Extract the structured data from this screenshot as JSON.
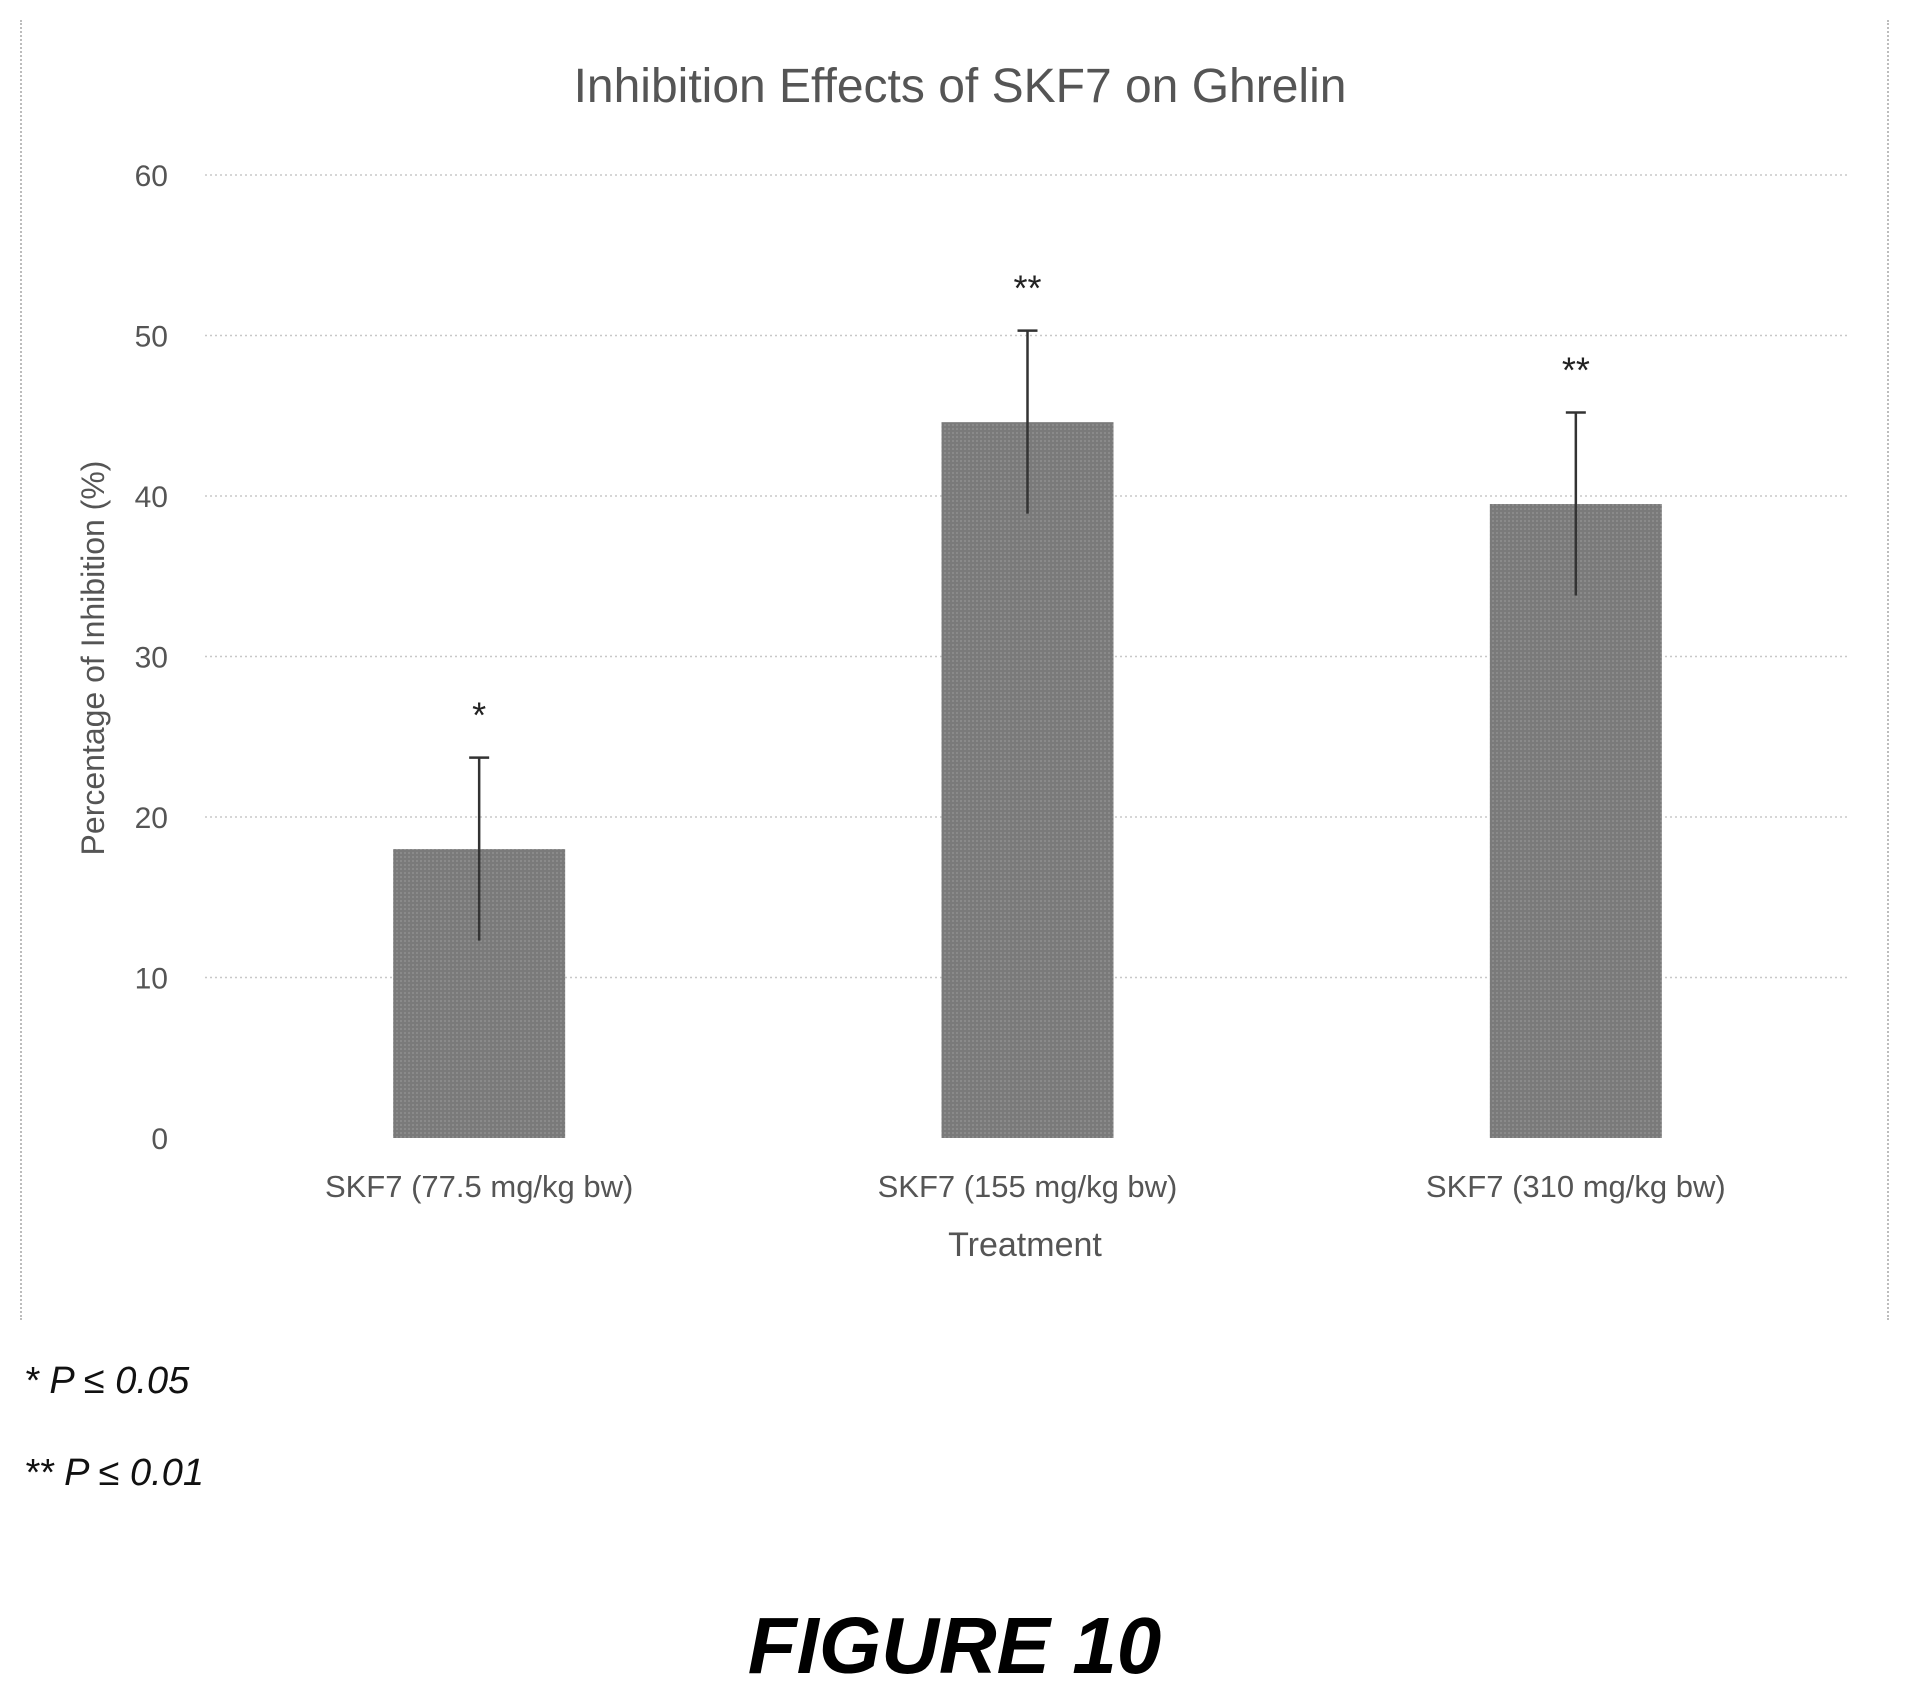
{
  "chart_data": {
    "type": "bar",
    "title": "Inhibition Effects of SKF7 on Ghrelin",
    "xlabel": "Treatment",
    "ylabel": "Percentage of Inhibition (%)",
    "categories": [
      "SKF7 (77.5 mg/kg bw)",
      "SKF7 (155 mg/kg bw)",
      "SKF7 (310 mg/kg bw)"
    ],
    "values": [
      18.0,
      44.6,
      39.5
    ],
    "error": [
      5.7,
      5.7,
      5.7
    ],
    "significance": [
      "*",
      "**",
      "**"
    ],
    "ylim": [
      0,
      60
    ],
    "yticks": [
      "0",
      "10",
      "20",
      "30",
      "40",
      "50",
      "60"
    ],
    "grid": true,
    "bar_color": "#7a7a7a"
  },
  "notes": [
    "* P ≤ 0.05",
    "** P ≤ 0.01"
  ],
  "figure_label": "FIGURE 10"
}
